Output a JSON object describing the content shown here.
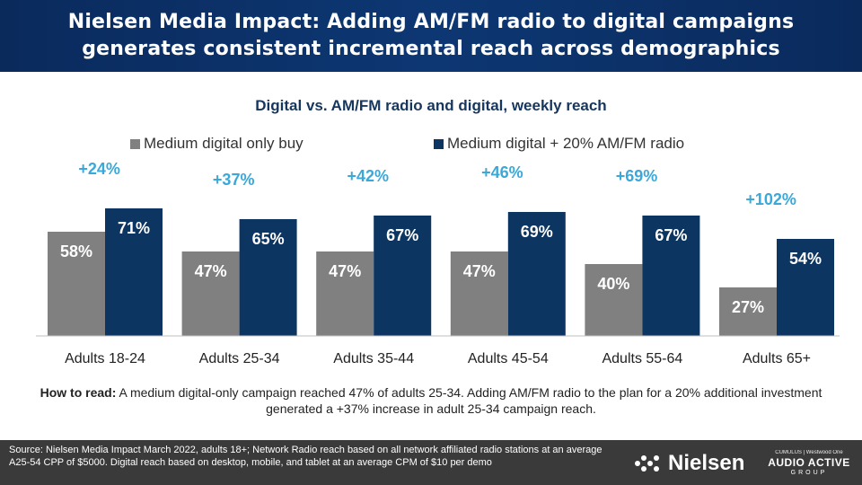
{
  "header": {
    "line1": "Nielsen Media Impact: Adding AM/FM radio to digital campaigns",
    "line2": "generates consistent incremental reach across demographics"
  },
  "chart_data": {
    "type": "bar",
    "title": "Digital vs. AM/FM radio and digital, weekly reach",
    "categories": [
      "Adults 18-24",
      "Adults 25-34",
      "Adults 35-44",
      "Adults 45-54",
      "Adults 55-64",
      "Adults 65+"
    ],
    "series": [
      {
        "name": "Medium digital only buy",
        "color": "#808080",
        "values": [
          58,
          47,
          47,
          47,
          40,
          27
        ],
        "labels": [
          "58%",
          "47%",
          "47%",
          "47%",
          "40%",
          "27%"
        ]
      },
      {
        "name": "Medium digital + 20% AM/FM radio",
        "color": "#0d3561",
        "values": [
          71,
          65,
          67,
          69,
          67,
          54
        ],
        "labels": [
          "71%",
          "65%",
          "67%",
          "69%",
          "67%",
          "54%"
        ]
      }
    ],
    "increase_labels": [
      "+24%",
      "+37%",
      "+42%",
      "+46%",
      "+69%",
      "+102%"
    ],
    "increase_color": "#3aa8d8",
    "ylim": [
      0,
      71
    ],
    "legend_position": "top",
    "grid": false
  },
  "howto": {
    "label": "How to read:",
    "text": " A medium digital-only campaign reached 47% of adults 25-34. Adding AM/FM radio to the plan for a 20% additional investment generated a +37% increase in adult 25-34 campaign reach."
  },
  "footer": {
    "source": "Source: Nielsen Media Impact March 2022, adults 18+; Network Radio reach based on all network affiliated radio stations at an average A25-54 CPP of $5000. Digital reach based on desktop, mobile, and tablet at an average CPM of $10 per demo",
    "nielsen_logo": "Nielsen",
    "aag_top": "CUMULUS | Westwood One",
    "aag_mid": "AUDIO ACTIVE",
    "aag_bot": "GROUP"
  }
}
